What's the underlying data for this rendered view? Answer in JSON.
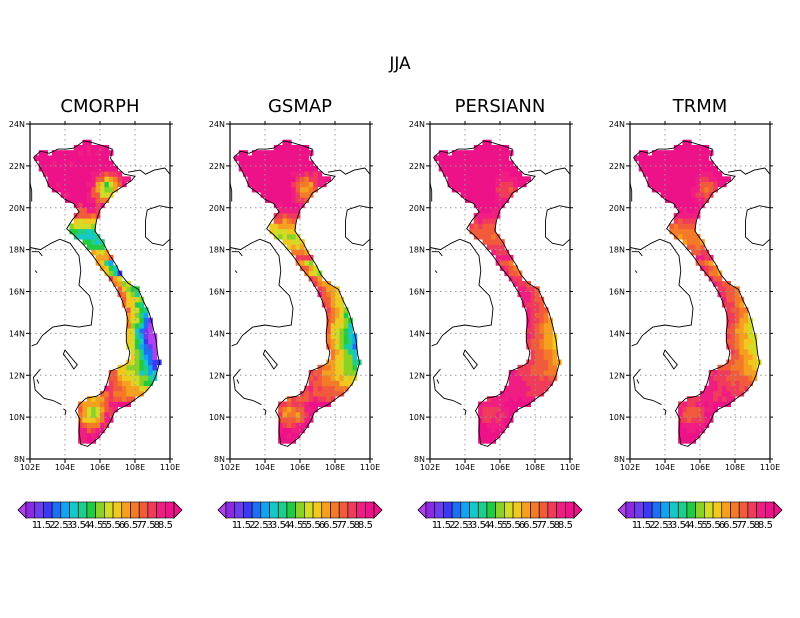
{
  "figure": {
    "season_label": "JJA"
  },
  "panels": [
    {
      "title": "CMORPH",
      "dryness": 1.0
    },
    {
      "title": "GSMAP",
      "dryness": 0.7
    },
    {
      "title": "PERSIANN",
      "dryness": 0.35
    },
    {
      "title": "TRMM",
      "dryness": 0.45
    }
  ],
  "map_axes": {
    "x_ticks": [
      "102E",
      "104E",
      "106E",
      "108E",
      "110E"
    ],
    "y_ticks": [
      "8N",
      "10N",
      "12N",
      "14N",
      "16N",
      "18N",
      "20N",
      "22N",
      "24N"
    ],
    "lon_range": [
      102,
      110
    ],
    "lat_range": [
      8,
      24
    ]
  },
  "colorbar": {
    "tick_labels": [
      "1",
      "1.5",
      "2",
      "2.5",
      "3",
      "3.5",
      "4",
      "4.5",
      "5",
      "5.5",
      "6",
      "6.5",
      "7",
      "7.5",
      "8",
      "8.5"
    ],
    "colors": [
      "#8a2be2",
      "#6a3df0",
      "#3a3af5",
      "#1f6ff5",
      "#13a3f0",
      "#18c8c8",
      "#1fce8c",
      "#22cc40",
      "#8ad226",
      "#d2dc26",
      "#f0c81e",
      "#f5a01e",
      "#f47a28",
      "#f25a3c",
      "#f03c5a",
      "#f01e82",
      "#ee1289"
    ],
    "under_color": "#b040f0",
    "over_color": "#ee1289"
  }
}
